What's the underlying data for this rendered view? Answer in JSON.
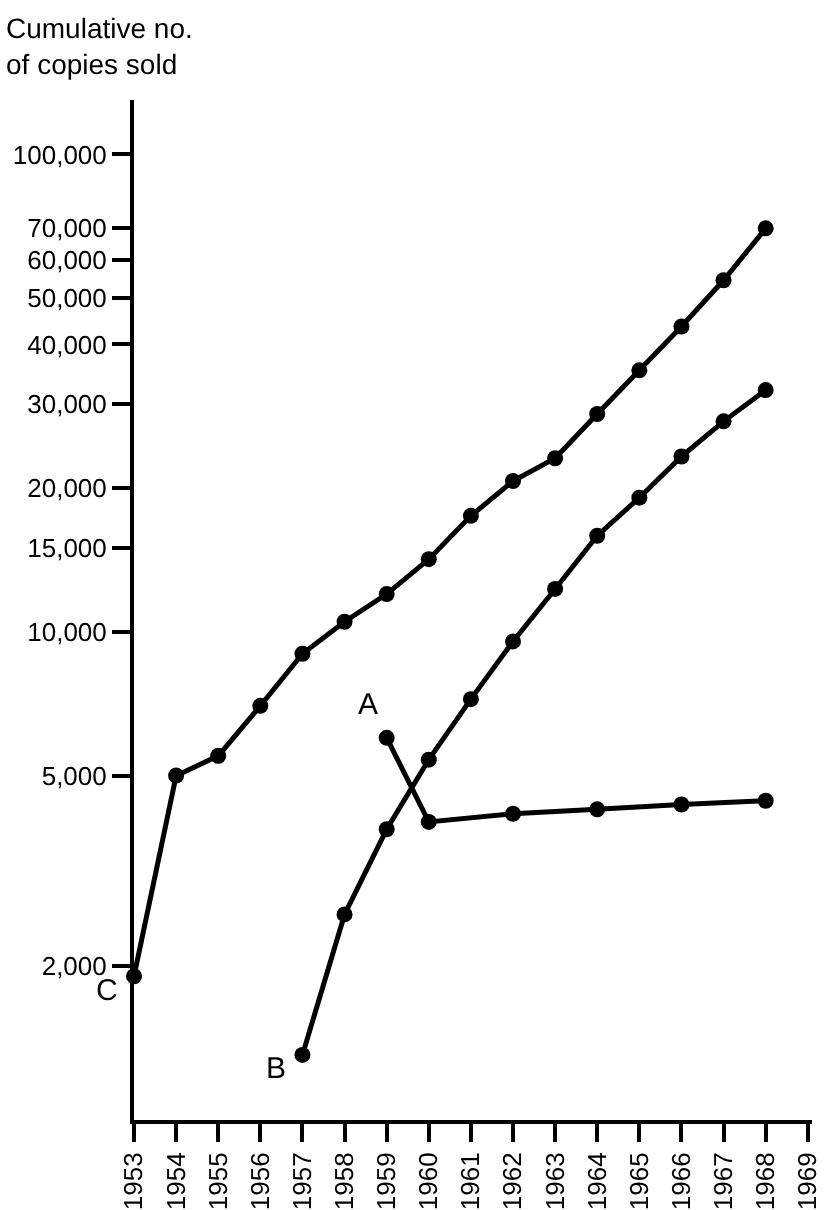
{
  "chart_data": {
    "type": "line",
    "ylabel": "Cumulative no.\nof copies sold",
    "series": [
      {
        "name": "C",
        "color": "#000000",
        "x": [
          1953,
          1954,
          1955,
          1956,
          1957,
          1958,
          1959,
          1960,
          1961,
          1962,
          1963,
          1964,
          1965,
          1966,
          1967,
          1968
        ],
        "values": [
          1900,
          5000,
          5500,
          7000,
          9000,
          10500,
          12000,
          14200,
          17500,
          20700,
          23100,
          28600,
          35300,
          43600,
          54500,
          70000
        ]
      },
      {
        "name": "B",
        "color": "#000000",
        "x": [
          1957,
          1958,
          1959,
          1960,
          1961,
          1962,
          1963,
          1964,
          1965,
          1966,
          1967,
          1968
        ],
        "values": [
          1300,
          2560,
          3860,
          5400,
          7230,
          9550,
          12300,
          15900,
          19100,
          23300,
          27600,
          32100
        ]
      },
      {
        "name": "A",
        "color": "#000000",
        "x": [
          1959,
          1960,
          1962,
          1964,
          1966,
          1968
        ],
        "values": [
          6000,
          4000,
          4160,
          4250,
          4350,
          4430
        ]
      }
    ],
    "log": true,
    "xlim": [
      1953,
      1969.1
    ],
    "xticks": [
      1953,
      1954,
      1955,
      1956,
      1957,
      1958,
      1959,
      1960,
      1961,
      1962,
      1963,
      1964,
      1965,
      1966,
      1967,
      1968,
      1969
    ],
    "ylim": [
      950,
      130000
    ],
    "yticks": [
      {
        "value": 2000,
        "label": "2,000"
      },
      {
        "value": 5000,
        "label": "5,000"
      },
      {
        "value": 10000,
        "label": "10,000"
      },
      {
        "value": 15000,
        "label": "15,000"
      },
      {
        "value": 20000,
        "label": "20,000"
      },
      {
        "value": 30000,
        "label": "30,000"
      },
      {
        "value": 40000,
        "label": "40,000"
      },
      {
        "value": 50000,
        "label": "50,000"
      },
      {
        "value": 60000,
        "label": "60,000"
      },
      {
        "value": 70000,
        "label": "70,000"
      },
      {
        "value": 100000,
        "label": "100,000"
      }
    ],
    "grid": false,
    "legend": false,
    "marker": "circle",
    "line_style": "solid"
  }
}
